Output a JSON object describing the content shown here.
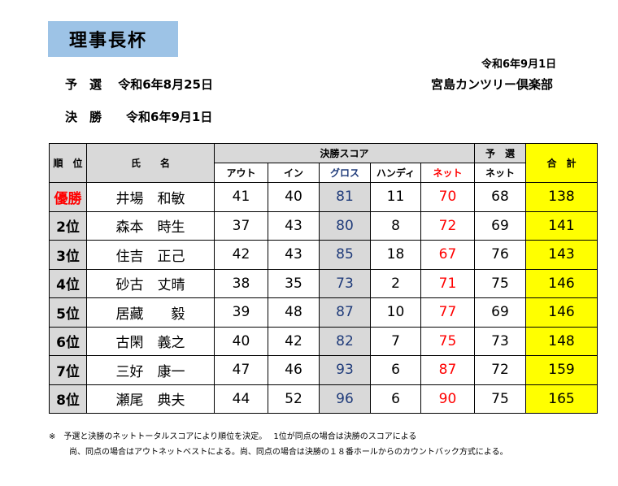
{
  "title": "理事長杯",
  "date_right": "令和6年9月1日",
  "club": "宮島カンツリー倶楽部",
  "prelim": {
    "label": "予　選",
    "date": "令和6年8月25日"
  },
  "final": {
    "label": "決　勝",
    "date": "令和6年9月1日"
  },
  "table": {
    "headers": {
      "rank": "順　位",
      "name": "氏　　名",
      "final_score": "決勝スコア",
      "out": "アウト",
      "in": "イン",
      "gross": "グロス",
      "handicap": "ハンディ",
      "net": "ネット",
      "prelim_top": "予　選",
      "prelim_net": "ネット",
      "total": "合　計"
    },
    "rows": [
      {
        "rank": "優勝",
        "name": "井場　和敏",
        "out": "41",
        "in": "40",
        "gross": "81",
        "hdcp": "11",
        "net": "70",
        "prelim_net": "68",
        "total": "138"
      },
      {
        "rank": "2位",
        "name": "森本　時生",
        "out": "37",
        "in": "43",
        "gross": "80",
        "hdcp": "8",
        "net": "72",
        "prelim_net": "69",
        "total": "141"
      },
      {
        "rank": "3位",
        "name": "住吉　正己",
        "out": "42",
        "in": "43",
        "gross": "85",
        "hdcp": "18",
        "net": "67",
        "prelim_net": "76",
        "total": "143"
      },
      {
        "rank": "4位",
        "name": "砂古　丈晴",
        "out": "38",
        "in": "35",
        "gross": "73",
        "hdcp": "2",
        "net": "71",
        "prelim_net": "75",
        "total": "146"
      },
      {
        "rank": "5位",
        "name": "居藏　　毅",
        "out": "39",
        "in": "48",
        "gross": "87",
        "hdcp": "10",
        "net": "77",
        "prelim_net": "69",
        "total": "146"
      },
      {
        "rank": "6位",
        "name": "古閑　義之",
        "out": "40",
        "in": "42",
        "gross": "82",
        "hdcp": "7",
        "net": "75",
        "prelim_net": "73",
        "total": "148"
      },
      {
        "rank": "7位",
        "name": "三好　康一",
        "out": "47",
        "in": "46",
        "gross": "93",
        "hdcp": "6",
        "net": "87",
        "prelim_net": "72",
        "total": "159"
      },
      {
        "rank": "8位",
        "name": "瀬尾　典夫",
        "out": "44",
        "in": "52",
        "gross": "96",
        "hdcp": "6",
        "net": "90",
        "prelim_net": "75",
        "total": "165"
      }
    ]
  },
  "notes": [
    "※　予選と決勝のネットトータルスコアにより順位を決定。　 1位が同点の場合は決勝のスコアによる",
    "尚、同点の場合はアウトネットベストによる。尚、同点の場合は決勝の１８番ホールからのカウントバック方式による。"
  ]
}
